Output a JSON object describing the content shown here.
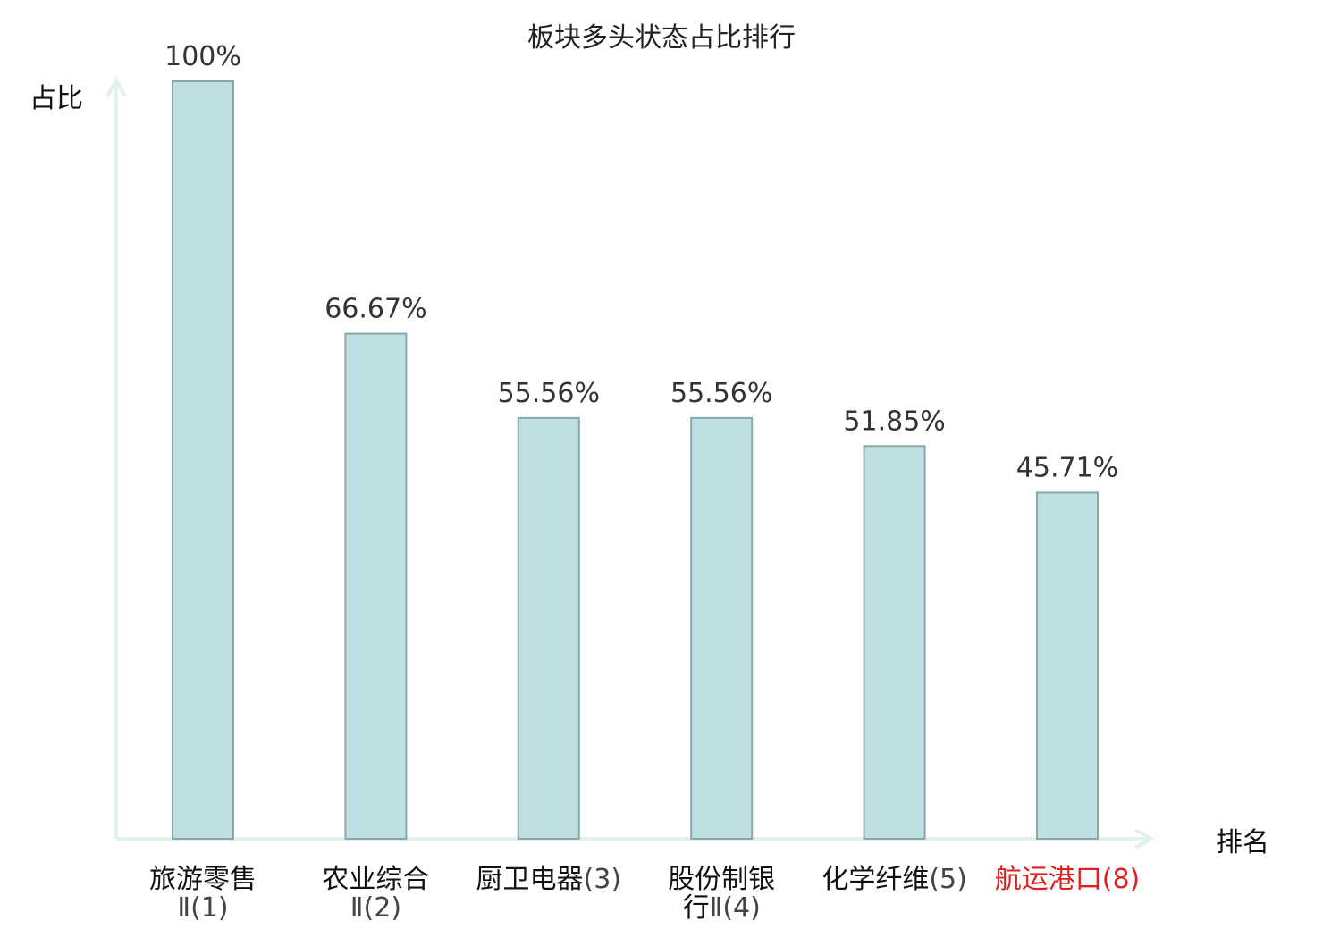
{
  "chart_data": {
    "type": "bar",
    "title": "板块多头状态占比排行",
    "ylabel": "占比",
    "xlabel": "排名",
    "ylim": [
      0,
      100
    ],
    "grid": false,
    "colors": {
      "bar_fill": "#bde0e3",
      "bar_stroke": "#8aa8ab",
      "axis": "#dff2ef",
      "highlight_label": "#e02020"
    },
    "categories": [
      {
        "line1": "旅游零售",
        "line2": "Ⅱ(1)",
        "highlight": false
      },
      {
        "line1": "农业综合",
        "line2": "Ⅱ(2)",
        "highlight": false
      },
      {
        "line1": "厨卫电器(3)",
        "line2": "",
        "highlight": false
      },
      {
        "line1": "股份制银",
        "line2": "行Ⅱ(4)",
        "highlight": false
      },
      {
        "line1": "化学纤维(5)",
        "line2": "",
        "highlight": false
      },
      {
        "line1": "航运港口(8)",
        "line2": "",
        "highlight": true
      }
    ],
    "values": [
      100,
      66.67,
      55.56,
      55.56,
      51.85,
      45.71
    ],
    "value_labels": [
      "100%",
      "66.67%",
      "55.56%",
      "55.56%",
      "51.85%",
      "45.71%"
    ]
  }
}
